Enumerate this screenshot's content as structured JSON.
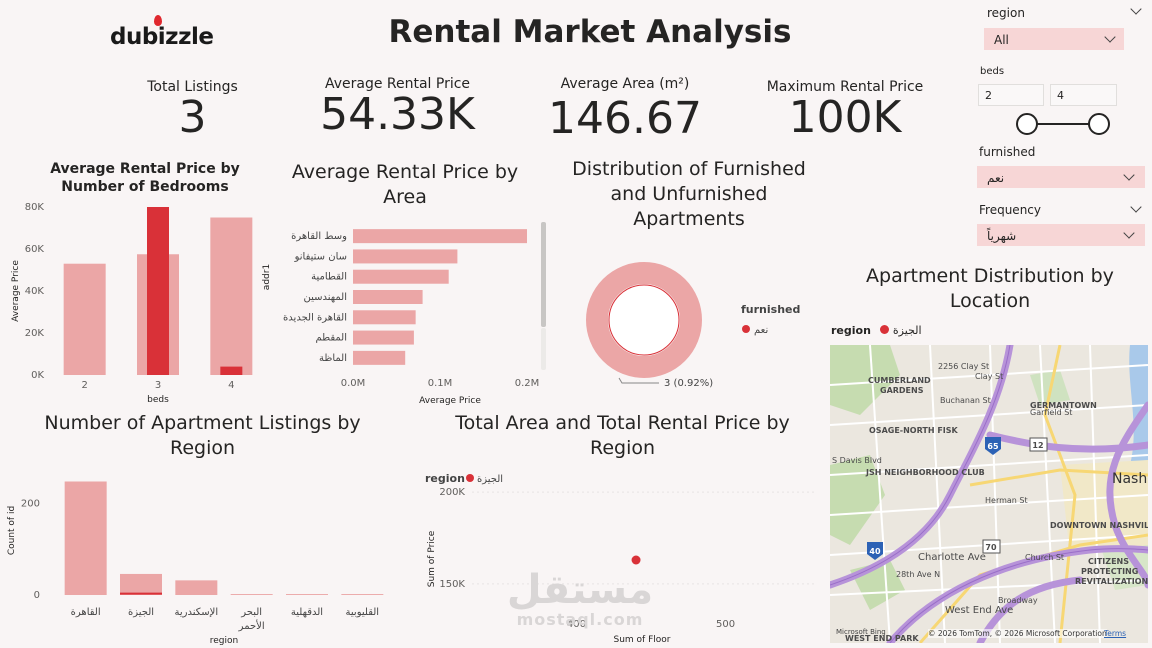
{
  "header": {
    "logo": "dubizzle",
    "title": "Rental Market Analysis"
  },
  "kpis": [
    {
      "label": "Total Listings",
      "value": "3"
    },
    {
      "label": "Average Rental Price",
      "value": "54.33K"
    },
    {
      "label": "Average Area (m²)",
      "value": "146.67"
    },
    {
      "label": "Maximum Rental Price",
      "value": "100K"
    }
  ],
  "slicers": {
    "region": {
      "label": "region",
      "value": "All"
    },
    "beds": {
      "label": "beds",
      "min": "2",
      "max": "4"
    },
    "furnished": {
      "label": "furnished",
      "value": "نعم"
    },
    "frequency": {
      "label": "Frequency",
      "value": "شهرياً"
    }
  },
  "chart_data": [
    {
      "type": "bar",
      "title": "Average Rental Price by Number of Bedrooms",
      "title_lines": [
        "Average Rental Price by",
        "Number of Bedrooms"
      ],
      "categories": [
        "2",
        "3",
        "4"
      ],
      "series": [
        {
          "values": [
            53000,
            57500,
            75000
          ],
          "color": "#eba6a6"
        },
        {
          "values": [
            0,
            80000,
            4000
          ],
          "color": "#d93138"
        }
      ],
      "xlabel": "beds",
      "ylabel": "Average Price",
      "ylim": [
        0,
        80000
      ],
      "yticks": [
        "0K",
        "20K",
        "40K",
        "60K",
        "80K"
      ]
    },
    {
      "type": "bar",
      "orientation": "horizontal",
      "title": "Average Rental Price by Area",
      "title_lines": [
        "Average Rental Price by",
        "Area"
      ],
      "categories": [
        "وسط القاهرة",
        "سان ستيفانو",
        "القطامية",
        "المهندسين",
        "القاهرة الجديدة",
        "المقطم",
        "الماظة"
      ],
      "values": [
        0.2,
        0.12,
        0.11,
        0.08,
        0.072,
        0.07,
        0.06
      ],
      "xlabel": "Average Price",
      "ylabel": "addr1",
      "xlim": [
        0,
        0.2
      ],
      "xticks": [
        "0.0M",
        "0.1M",
        "0.2M"
      ]
    },
    {
      "type": "pie",
      "title": "Distribution of Furnished and Unfurnished Apartments",
      "title_lines": [
        "Distribution of Furnished",
        "and Unfurnished",
        "Apartments"
      ],
      "legend_title": "furnished",
      "slices": [
        {
          "name": "نعم",
          "value": 3,
          "percent": 100
        }
      ],
      "data_label": "3 (0.92%)"
    },
    {
      "type": "bar",
      "title": "Number of Apartment Listings by Region",
      "title_lines": [
        "Number of Apartment Listings by",
        "Region"
      ],
      "categories": [
        "القاهرة",
        "الجيزة",
        "الإسكندرية",
        "البحر الأحمر",
        "الدقهلية",
        "القليوبية"
      ],
      "category_lines": [
        [
          "القاهرة"
        ],
        [
          "الجيزة"
        ],
        [
          "الإسكندرية"
        ],
        [
          "البحر",
          "الأحمر"
        ],
        [
          "الدقهلية"
        ],
        [
          "القليوبية"
        ]
      ],
      "values": [
        248,
        46,
        32,
        2,
        2,
        2
      ],
      "highlight": [
        0,
        3,
        0,
        0,
        0,
        0
      ],
      "xlabel": "region",
      "ylabel": "Count of id",
      "ylim": [
        0,
        260
      ],
      "yticks": [
        0,
        200
      ]
    },
    {
      "type": "scatter",
      "title": "Total Area and Total Rental Price by Region",
      "title_lines": [
        "Total Area and Total Rental Price by",
        "Region"
      ],
      "legend_title": "region",
      "legend": [
        {
          "name": "الجيزة",
          "color": "#d93138"
        }
      ],
      "points": [
        {
          "x": 440,
          "y": 163000
        }
      ],
      "xlabel": "Sum of Floor",
      "ylabel": "Sum of Price",
      "xlim": [
        330,
        560
      ],
      "ylim": [
        133000,
        205000
      ],
      "xticks": [
        400,
        500
      ],
      "yticks": [
        "150K",
        "200K"
      ],
      "ytick_values": [
        150000,
        200000
      ]
    }
  ],
  "map": {
    "title_lines": [
      "Apartment Distribution by",
      "Location"
    ],
    "legend_title": "region",
    "legend_item": "الجيزة",
    "labels": [
      "CUMBERLAND",
      "GARDENS",
      "2256 Clay St",
      "Clay St",
      "Buchanan St",
      "Garfield St",
      "GERMANTOWN",
      "OSAGE-NORTH FISK",
      "JSH NEIGHBORHOOD CLUB",
      "S Davis Blvd",
      "Nash",
      "Herman St",
      "DOWNTOWN NASHVIL",
      "Charlotte Ave",
      "CITIZENS",
      "PROTECTING",
      "REVITALIZATION",
      "West End Ave",
      "Broadway",
      "WEST END PARK",
      "Church St",
      "28th Ave N",
      "40",
      "65",
      "12",
      "70"
    ],
    "copyright": "© 2026 TomTom, © 2026 Microsoft Corporation",
    "terms": "Terms",
    "ms_label": "Microsoft Bing"
  },
  "watermark": {
    "arabic": "مستقل",
    "latin": "mostaql.com"
  },
  "colors": {
    "bar_light": "#eba6a6",
    "bar_dark": "#d93138",
    "slicer_bg": "#f7d6d6",
    "background": "#f9f5f5"
  }
}
